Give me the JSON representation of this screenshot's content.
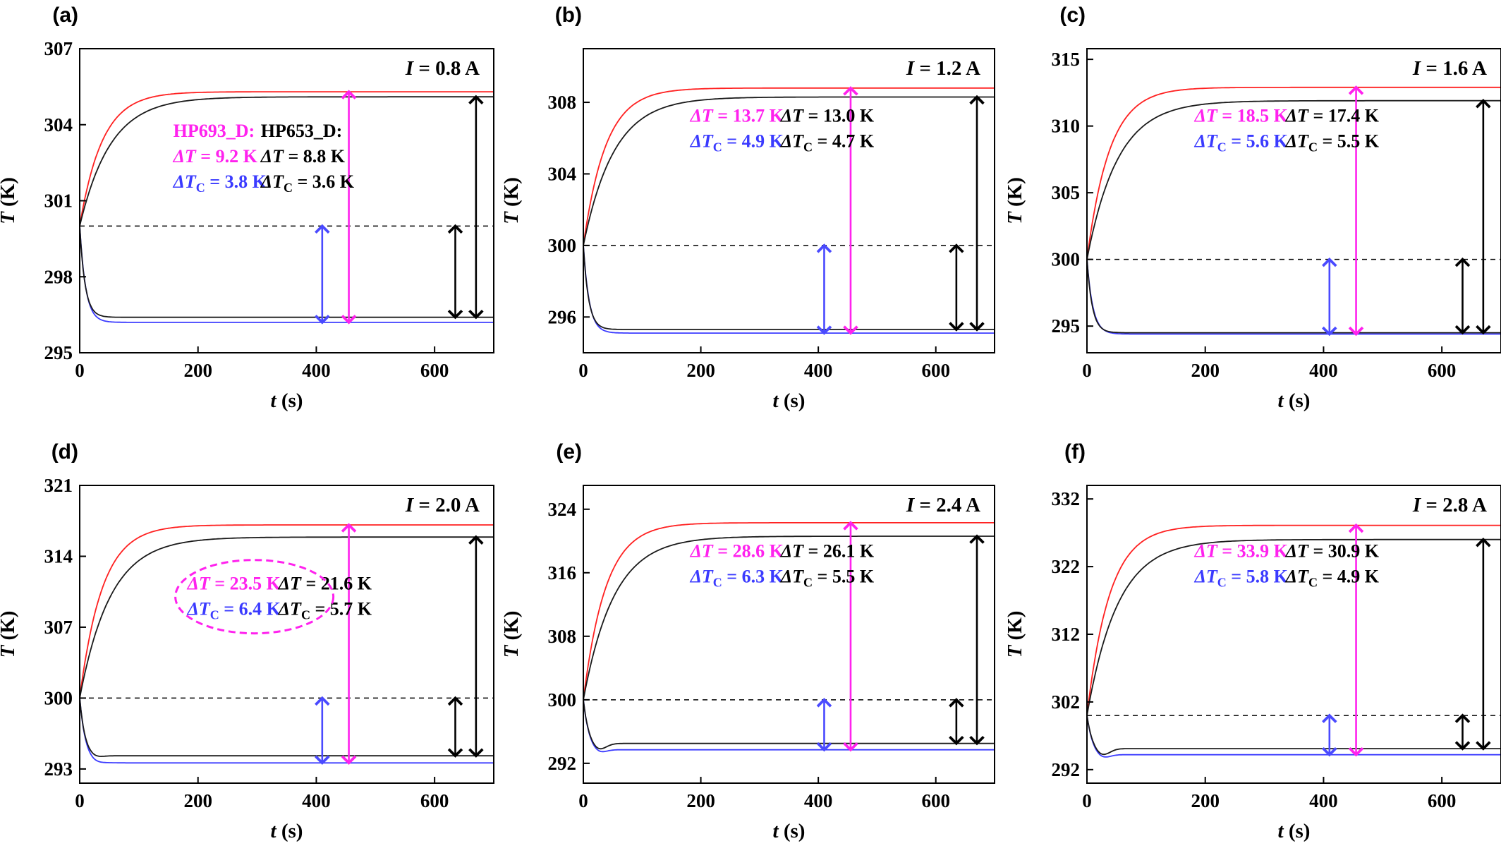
{
  "figure": {
    "colors": {
      "hp693_hot": "#ff2020",
      "hp693_cold": "#3b3bff",
      "hp653": "#1a1a1a",
      "delta_t_arrow_hp693": "#ff22ee",
      "delta_tc_arrow_hp693": "#4a4aff",
      "arrow_hp653": "#000000",
      "ellipse": "#ff22ee"
    },
    "common_xlabel_main": "t",
    "common_xlabel_unit": " (s)",
    "common_ylabel_main": "T",
    "common_ylabel_unit": " (K)",
    "common_xticks": [
      "0",
      "200",
      "400",
      "600"
    ],
    "current_prefix": "I",
    "delta_t_label": "ΔT",
    "delta_tc_prefix": "ΔT",
    "delta_tc_sub": "C",
    "hp693_label": "HP693_D:",
    "hp653_label": "HP653_D:"
  },
  "chart_data": [
    {
      "type": "line",
      "panel": "(a)",
      "current": "= 0.8 A",
      "xlim": [
        0,
        700
      ],
      "ylim": [
        295,
        307
      ],
      "yticks": [
        "295",
        "298",
        "301",
        "304",
        "307"
      ],
      "reference_temperature": 300,
      "series": [
        {
          "name": "HP693_D",
          "hot_final": 305.3,
          "cold_final": 296.2,
          "delta_t": "= 9.2 K",
          "delta_tc": "= 3.8 K"
        },
        {
          "name": "HP653_D",
          "hot_final": 305.1,
          "cold_final": 296.4,
          "delta_t": "= 8.8 K",
          "delta_tc": "= 3.6 K"
        }
      ],
      "show_names": true,
      "ellipse": false
    },
    {
      "type": "line",
      "panel": "(b)",
      "current": "= 1.2 A",
      "xlim": [
        0,
        700
      ],
      "ylim": [
        294,
        311
      ],
      "yticks": [
        "296",
        "300",
        "304",
        "308"
      ],
      "reference_temperature": 300,
      "series": [
        {
          "name": "HP693_D",
          "hot_final": 308.8,
          "cold_final": 295.1,
          "delta_t": "= 13.7 K",
          "delta_tc": "= 4.9 K"
        },
        {
          "name": "HP653_D",
          "hot_final": 308.3,
          "cold_final": 295.3,
          "delta_t": "= 13.0 K",
          "delta_tc": "= 4.7 K"
        }
      ],
      "show_names": false,
      "ellipse": false
    },
    {
      "type": "line",
      "panel": "(c)",
      "current": "= 1.6 A",
      "xlim": [
        0,
        700
      ],
      "ylim": [
        293,
        315.8
      ],
      "yticks": [
        "295",
        "300",
        "305",
        "310",
        "315"
      ],
      "reference_temperature": 300,
      "series": [
        {
          "name": "HP693_D",
          "hot_final": 312.9,
          "cold_final": 294.4,
          "delta_t": "= 18.5 K",
          "delta_tc": "= 5.6 K"
        },
        {
          "name": "HP653_D",
          "hot_final": 311.9,
          "cold_final": 294.5,
          "delta_t": "= 17.4 K",
          "delta_tc": "= 5.5 K"
        }
      ],
      "show_names": false,
      "ellipse": false
    },
    {
      "type": "line",
      "panel": "(d)",
      "current": "= 2.0 A",
      "xlim": [
        0,
        700
      ],
      "ylim": [
        291.6,
        321
      ],
      "yticks": [
        "293",
        "300",
        "307",
        "314",
        "321"
      ],
      "reference_temperature": 300,
      "series": [
        {
          "name": "HP693_D",
          "hot_final": 317.1,
          "cold_final": 293.6,
          "delta_t": "= 23.5 K",
          "delta_tc": "= 6.4 K"
        },
        {
          "name": "HP653_D",
          "hot_final": 315.9,
          "cold_final": 294.3,
          "delta_t": "= 21.6 K",
          "delta_tc": "= 5.7 K"
        }
      ],
      "show_names": false,
      "ellipse": true
    },
    {
      "type": "line",
      "panel": "(e)",
      "current": "= 2.4 A",
      "xlim": [
        0,
        700
      ],
      "ylim": [
        289.5,
        327
      ],
      "yticks": [
        "292",
        "300",
        "308",
        "316",
        "324"
      ],
      "reference_temperature": 300,
      "series": [
        {
          "name": "HP693_D",
          "hot_final": 322.3,
          "cold_final": 293.7,
          "delta_t": "= 28.6 K",
          "delta_tc": "= 6.3 K"
        },
        {
          "name": "HP653_D",
          "hot_final": 320.6,
          "cold_final": 294.5,
          "delta_t": "= 26.1 K",
          "delta_tc": "= 5.5 K"
        }
      ],
      "show_names": false,
      "ellipse": false
    },
    {
      "type": "line",
      "panel": "(f)",
      "current": "= 2.8 A",
      "xlim": [
        0,
        700
      ],
      "ylim": [
        290,
        334
      ],
      "yticks": [
        "292",
        "302",
        "312",
        "322",
        "332"
      ],
      "reference_temperature": 300,
      "series": [
        {
          "name": "HP693_D",
          "hot_final": 328.1,
          "cold_final": 294.2,
          "delta_t": "= 33.9 K",
          "delta_tc": "= 5.8 K"
        },
        {
          "name": "HP653_D",
          "hot_final": 326.0,
          "cold_final": 295.1,
          "delta_t": "= 30.9 K",
          "delta_tc": "= 4.9 K"
        }
      ],
      "show_names": false,
      "ellipse": false
    }
  ]
}
